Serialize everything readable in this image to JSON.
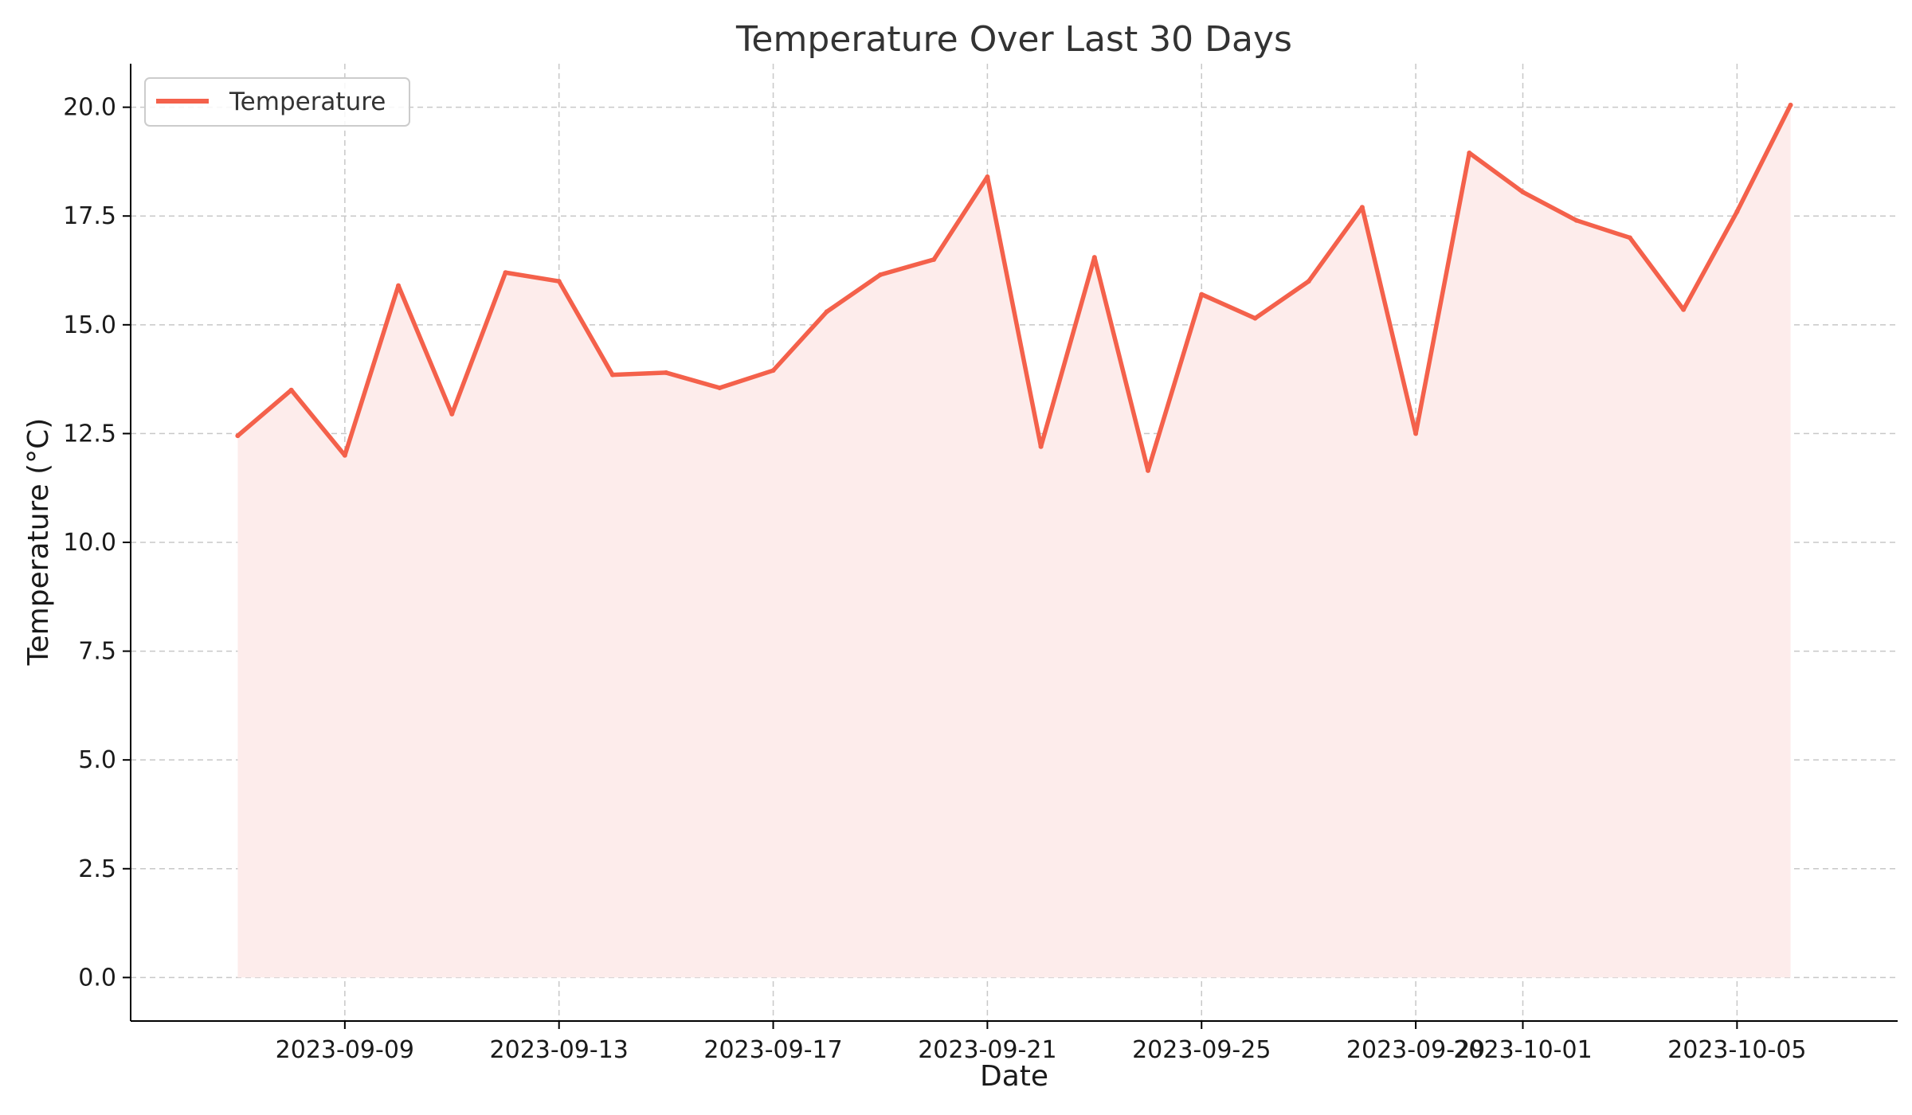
{
  "chart_data": {
    "type": "area",
    "title": "Temperature Over Last 30 Days",
    "xlabel": "Date",
    "ylabel": "Temperature (°C)",
    "x": [
      "2023-09-07",
      "2023-09-08",
      "2023-09-09",
      "2023-09-10",
      "2023-09-11",
      "2023-09-12",
      "2023-09-13",
      "2023-09-14",
      "2023-09-15",
      "2023-09-16",
      "2023-09-17",
      "2023-09-18",
      "2023-09-19",
      "2023-09-20",
      "2023-09-21",
      "2023-09-22",
      "2023-09-23",
      "2023-09-24",
      "2023-09-25",
      "2023-09-26",
      "2023-09-27",
      "2023-09-28",
      "2023-09-29",
      "2023-09-30",
      "2023-10-01",
      "2023-10-02",
      "2023-10-03",
      "2023-10-04",
      "2023-10-05",
      "2023-10-06"
    ],
    "series": [
      {
        "name": "Temperature",
        "color": "#f4614b",
        "fill_color": "#fdeceb",
        "values": [
          12.45,
          13.5,
          12.0,
          15.9,
          12.95,
          16.2,
          16.0,
          13.85,
          13.9,
          13.55,
          13.95,
          15.3,
          16.15,
          16.5,
          18.4,
          12.2,
          16.55,
          11.65,
          15.7,
          15.15,
          16.0,
          17.7,
          12.5,
          18.95,
          18.05,
          17.4,
          17.0,
          15.35,
          17.6,
          20.05
        ]
      }
    ],
    "xlim": [
      "2023-09-05",
      "2023-10-08"
    ],
    "ylim": [
      -1.0,
      21.0
    ],
    "x_ticks": [
      "2023-09-09",
      "2023-09-13",
      "2023-09-17",
      "2023-09-21",
      "2023-09-25",
      "2023-09-29",
      "2023-10-01",
      "2023-10-05"
    ],
    "y_ticks": [
      0.0,
      2.5,
      5.0,
      7.5,
      10.0,
      12.5,
      15.0,
      17.5,
      20.0
    ],
    "y_tick_labels": [
      "0.0",
      "2.5",
      "5.0",
      "7.5",
      "10.0",
      "12.5",
      "15.0",
      "17.5",
      "20.0"
    ],
    "grid": true,
    "legend": "upper-left"
  }
}
